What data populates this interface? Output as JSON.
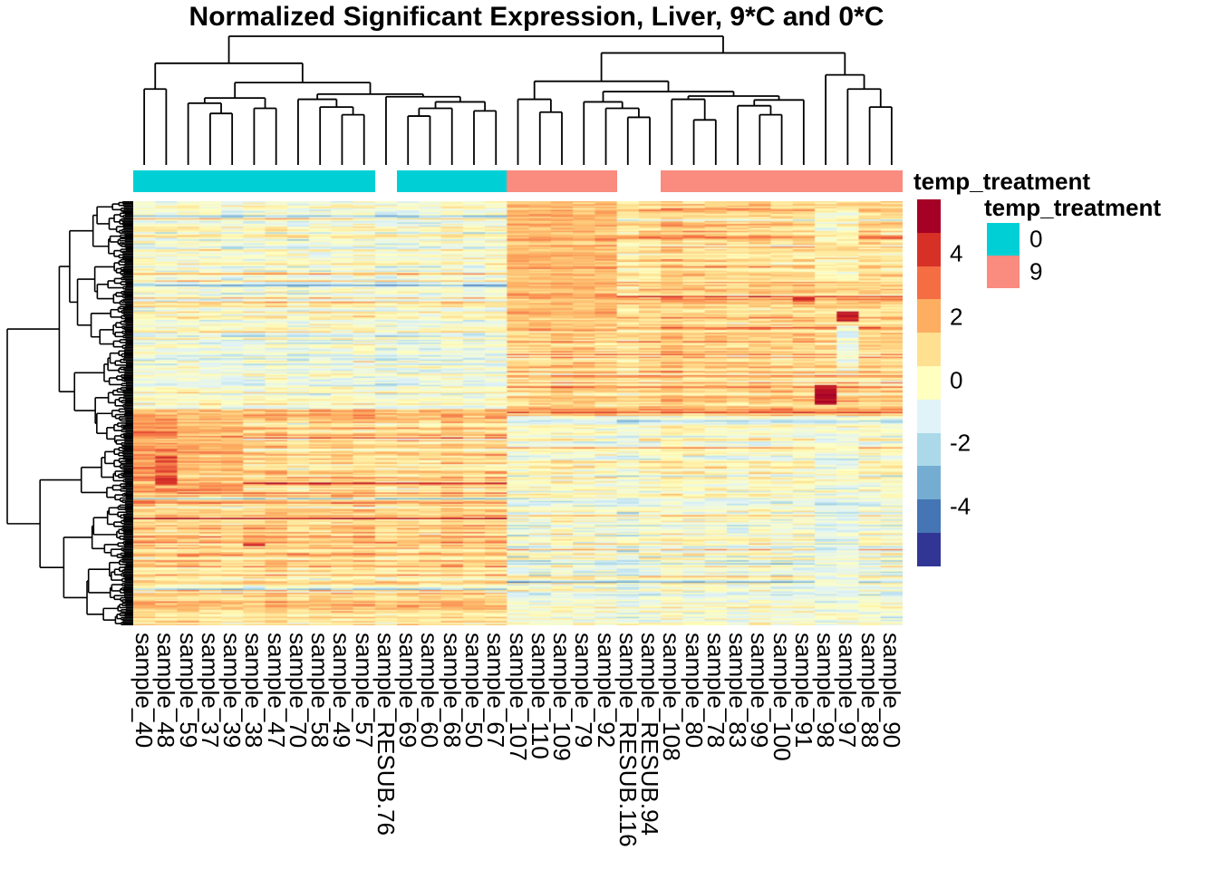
{
  "title": "Normalized Significant Expression, Liver, 9*C and 0*C",
  "chart_data": {
    "type": "heatmap",
    "title": "Normalized Significant Expression, Liver, 9*C and 0*C",
    "columns": [
      "sample_40",
      "sample_48",
      "sample_59",
      "sample_37",
      "sample_39",
      "sample_38",
      "sample_47",
      "sample_70",
      "sample_58",
      "sample_49",
      "sample_57",
      "sample_RESUB.76",
      "sample_69",
      "sample_60",
      "sample_68",
      "sample_50",
      "sample_67",
      "sample_107",
      "sample_110",
      "sample_109",
      "sample_79",
      "sample_92",
      "sample_RESUB.116",
      "sample_RESUB.94",
      "sample_108",
      "sample_80",
      "sample_78",
      "sample_83",
      "sample_99",
      "sample_100",
      "sample_91",
      "sample_98",
      "sample_97",
      "sample_88",
      "sample_90"
    ],
    "column_annotation": {
      "name": "temp_treatment",
      "values": [
        "0",
        "0",
        "0",
        "0",
        "0",
        "0",
        "0",
        "0",
        "0",
        "0",
        "0",
        "NA",
        "0",
        "0",
        "0",
        "0",
        "0",
        "9",
        "9",
        "9",
        "9",
        "9",
        "NA",
        "NA",
        "9",
        "9",
        "9",
        "9",
        "9",
        "9",
        "9",
        "9",
        "9",
        "9",
        "9"
      ],
      "colors": {
        "0": "#00D0D6",
        "9": "#FA8B7F",
        "NA": "transparent"
      }
    },
    "legend_items": [
      {
        "label": "0",
        "color": "#00D0D6"
      },
      {
        "label": "9",
        "color": "#FA8B7F"
      }
    ],
    "colorbar": {
      "ticks": [
        "4",
        "2",
        "0",
        "-2",
        "-4"
      ],
      "tick_values": [
        4,
        2,
        0,
        -2,
        -4
      ],
      "palette_top_to_bottom": [
        "#A50026",
        "#D73027",
        "#F46D43",
        "#FDAE61",
        "#FEE090",
        "#FFFFBF",
        "#E0F3F8",
        "#ABD9E9",
        "#74ADD1",
        "#4575B4",
        "#313695"
      ],
      "value_top": 5.6,
      "value_bottom": -5.8
    },
    "rows": {
      "n_rows": 300,
      "row_labels_shown": false
    },
    "pattern_model": {
      "seed": 11,
      "cold_col_count": 17,
      "row_blocks": [
        {
          "from": 0,
          "to": 148,
          "cold_mean": -0.55,
          "warm_mean": 1.25
        },
        {
          "from": 148,
          "to": 152,
          "cold_mean": 1.4,
          "warm_mean": 2.2
        },
        {
          "from": 152,
          "to": 207,
          "cold_mean": 1.25,
          "warm_mean": -0.5
        },
        {
          "from": 207,
          "to": 258,
          "cold_mean": 1.4,
          "warm_mean": -0.55
        },
        {
          "from": 258,
          "to": 300,
          "cold_mean": 1.0,
          "warm_mean": -0.35
        }
      ],
      "col_overrides": [
        {
          "cols": [
            0,
            1
          ],
          "from": 152,
          "to": 207,
          "mean": 2.6
        },
        {
          "cols": [
            1
          ],
          "from": 175,
          "to": 206,
          "mean": 3.3
        },
        {
          "cols": [
            2,
            3,
            4
          ],
          "from": 152,
          "to": 206,
          "mean": 1.9
        },
        {
          "cols": [
            17,
            18,
            19,
            20,
            21
          ],
          "from": 0,
          "to": 92,
          "mean": 1.8
        },
        {
          "cols": [
            31,
            32
          ],
          "from": 4,
          "to": 56,
          "mean": 0.1
        },
        {
          "cols": [
            32
          ],
          "from": 88,
          "to": 120,
          "mean": -0.7
        },
        {
          "cols": [
            31,
            32
          ],
          "from": 160,
          "to": 300,
          "mean": -0.85
        }
      ],
      "hotspots": [
        {
          "col": 31,
          "from": 130,
          "to": 144,
          "value": 5.3
        },
        {
          "col": 32,
          "from": 78,
          "to": 85,
          "value": 5.0
        },
        {
          "col": 30,
          "from": 68,
          "to": 71,
          "value": 4.4
        },
        {
          "col": 1,
          "from": 196,
          "to": 200,
          "value": 4.5
        },
        {
          "col": 5,
          "from": 242,
          "to": 244,
          "value": 4.3
        }
      ],
      "noise": {
        "row": 0.8,
        "cell": 0.5,
        "col_offset": 0.2,
        "outlier_prob": 0.06,
        "outlier_mag": 1.8
      }
    },
    "column_dendrogram": [
      1.0,
      [
        0.79,
        [
          0.59,
          0,
          1
        ],
        [
          0.64,
          [
            0.52,
            [
              0.48,
              2,
              [
                0.4,
                3,
                4
              ]
            ],
            [
              0.44,
              5,
              6
            ]
          ],
          [
            0.55,
            [
              0.51,
              7,
              [
                0.45,
                8,
                [
                  0.39,
                  9,
                  10
                ]
              ]
            ],
            [
              0.53,
              11,
              [
                0.49,
                [
                  0.44,
                  [
                    0.38,
                    12,
                    13
                  ],
                  14
                ],
                [
                  0.42,
                  15,
                  16
                ]
              ]
            ]
          ]
        ]
      ],
      [
        0.87,
        [
          0.65,
          [
            0.51,
            17,
            [
              0.41,
              18,
              19
            ]
          ],
          [
            0.57,
            [
              0.49,
              20,
              [
                0.44,
                21,
                [
                  0.37,
                  22,
                  23
                ]
              ]
            ],
            [
              0.535,
              [
                0.51,
                24,
                [
                  0.35,
                  25,
                  26
                ]
              ],
              [
                0.505,
                [
                  0.46,
                  27,
                  [
                    0.39,
                    28,
                    29
                  ]
                ],
                30
              ]
            ]
          ]
        ],
        [
          0.7,
          31,
          [
            0.59,
            32,
            [
              0.45,
              33,
              34
            ]
          ]
        ]
      ]
    ],
    "row_dendrogram": {
      "n_leaves": 300,
      "seed": 5
    }
  }
}
